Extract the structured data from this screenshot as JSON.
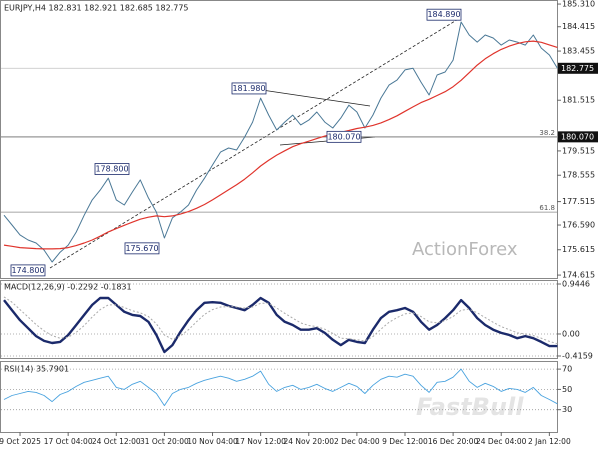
{
  "chart_data": [
    {
      "type": "line",
      "title": "EURJPY,H4 182.831 182.921 182.685 182.775",
      "ylim": [
        174.5,
        185.47
      ],
      "yticks": [
        {
          "value": 185.31,
          "label": "185.310"
        },
        184.415,
        183.455,
        181.515,
        179.515,
        178.555,
        177.515,
        {
          "value": 176.59,
          "label": "176.590"
        },
        175.615,
        174.615
      ],
      "grid": false,
      "price_tags": [
        {
          "value": 182.775,
          "label": "182.775"
        },
        {
          "value": 180.07,
          "label": "180.070"
        }
      ],
      "levels": [
        {
          "value": 180.07,
          "label": "38.2"
        },
        {
          "value": 177.1,
          "label": "61.8"
        }
      ],
      "annotations": [
        {
          "value": 184.89,
          "label": "184.890"
        },
        {
          "value": 181.98,
          "label": "181.980"
        },
        {
          "value": 178.8,
          "label": "178.800"
        },
        {
          "value": 180.07,
          "label": "180.070"
        },
        {
          "value": 175.67,
          "label": "175.670"
        },
        {
          "value": 174.8,
          "label": "174.800"
        }
      ],
      "watermark": "ActionForex",
      "series": [
        {
          "color": "#4a7896",
          "values": [
            176.98,
            176.59,
            176.2,
            176.0,
            175.88,
            175.6,
            175.13,
            175.52,
            175.8,
            176.31,
            176.98,
            177.58,
            177.97,
            178.44,
            177.58,
            177.38,
            177.89,
            178.37,
            177.66,
            177.1,
            176.08,
            176.87,
            177.1,
            177.38,
            177.97,
            178.44,
            178.96,
            179.47,
            179.63,
            179.55,
            180.06,
            180.65,
            181.6,
            180.93,
            180.34,
            180.65,
            180.93,
            180.54,
            180.73,
            181.05,
            180.65,
            180.42,
            180.81,
            181.32,
            181.05,
            180.42,
            180.93,
            181.6,
            182.11,
            182.31,
            182.71,
            182.78,
            182.23,
            181.72,
            182.51,
            182.63,
            183.1,
            184.6,
            184.09,
            183.81,
            184.09,
            183.97,
            183.69,
            183.89,
            183.81,
            183.69,
            184.09,
            183.57,
            183.3,
            182.775
          ]
        },
        {
          "color": "#e0342c",
          "values": [
            175.8,
            175.75,
            175.7,
            175.68,
            175.66,
            175.65,
            175.65,
            175.66,
            175.7,
            175.78,
            175.88,
            176.0,
            176.15,
            176.32,
            176.45,
            176.58,
            176.7,
            176.82,
            176.9,
            176.95,
            176.92,
            176.95,
            177.02,
            177.12,
            177.25,
            177.4,
            177.58,
            177.78,
            177.98,
            178.18,
            178.4,
            178.65,
            178.92,
            179.15,
            179.35,
            179.52,
            179.68,
            179.8,
            179.9,
            180.0,
            180.1,
            180.18,
            180.25,
            180.32,
            180.4,
            180.45,
            180.52,
            180.62,
            180.75,
            180.9,
            181.08,
            181.25,
            181.42,
            181.55,
            181.7,
            181.85,
            182.05,
            182.3,
            182.6,
            182.9,
            183.15,
            183.35,
            183.52,
            183.65,
            183.75,
            183.82,
            183.85,
            183.8,
            183.7,
            183.6
          ]
        }
      ]
    },
    {
      "type": "line",
      "title": "MACD(12,26,9) -0.2292 -0.1831",
      "ylim": [
        -0.454,
        1.02
      ],
      "yticks": [
        0.9446,
        {
          "value": 0,
          "label": "0.00"
        },
        -0.4159
      ],
      "grid": true,
      "series": [
        {
          "color": "#1b2a6b",
          "values": [
            0.64,
            0.45,
            0.26,
            0.11,
            -0.04,
            -0.13,
            -0.17,
            -0.15,
            -0.02,
            0.17,
            0.36,
            0.55,
            0.68,
            0.68,
            0.55,
            0.42,
            0.36,
            0.34,
            0.23,
            -0.02,
            -0.34,
            -0.21,
            0.04,
            0.26,
            0.45,
            0.59,
            0.6,
            0.59,
            0.53,
            0.49,
            0.45,
            0.55,
            0.68,
            0.59,
            0.36,
            0.23,
            0.17,
            0.08,
            0.08,
            0.11,
            0.02,
            -0.11,
            -0.21,
            -0.11,
            -0.15,
            -0.17,
            0.08,
            0.3,
            0.42,
            0.45,
            0.49,
            0.42,
            0.23,
            0.08,
            0.17,
            0.3,
            0.45,
            0.64,
            0.49,
            0.3,
            0.17,
            0.08,
            0.02,
            -0.02,
            -0.08,
            -0.04,
            -0.08,
            -0.15,
            -0.23,
            -0.2292
          ]
        },
        {
          "color": "#aaaaaa",
          "values": [
            0.7,
            0.6,
            0.46,
            0.32,
            0.18,
            0.06,
            -0.03,
            -0.08,
            -0.06,
            0.03,
            0.16,
            0.32,
            0.46,
            0.55,
            0.55,
            0.5,
            0.44,
            0.4,
            0.33,
            0.19,
            -0.02,
            -0.1,
            -0.04,
            0.08,
            0.23,
            0.37,
            0.46,
            0.51,
            0.52,
            0.51,
            0.49,
            0.51,
            0.58,
            0.58,
            0.49,
            0.39,
            0.3,
            0.21,
            0.16,
            0.14,
            0.09,
            0.01,
            -0.08,
            -0.09,
            -0.11,
            -0.13,
            -0.05,
            0.09,
            0.22,
            0.31,
            0.38,
            0.4,
            0.33,
            0.23,
            0.21,
            0.25,
            0.33,
            0.45,
            0.47,
            0.4,
            0.31,
            0.22,
            0.14,
            0.08,
            0.02,
            0.0,
            -0.03,
            -0.08,
            -0.14,
            -0.1831
          ]
        }
      ]
    },
    {
      "type": "line",
      "title": "RSI(14) 35.7901",
      "ylim": [
        8,
        78
      ],
      "yticks": [
        70,
        50,
        30
      ],
      "grid": true,
      "watermark": "FastBull",
      "categories": [
        null,
        null,
        "9 Oct 2025",
        null,
        null,
        null,
        null,
        null,
        "17 Oct 04:00",
        null,
        null,
        null,
        null,
        null,
        "24 Oct 12:00",
        null,
        null,
        null,
        null,
        null,
        "31 Oct 20:00",
        null,
        null,
        null,
        null,
        null,
        "10 Nov 04:00",
        null,
        null,
        null,
        null,
        null,
        "17 Nov 12:00",
        null,
        null,
        null,
        null,
        null,
        "24 Nov 20:00",
        null,
        null,
        null,
        null,
        null,
        "2 Dec 04:00",
        null,
        null,
        null,
        null,
        null,
        "9 Dec 12:00",
        null,
        null,
        null,
        null,
        null,
        "16 Dec 20:00",
        null,
        null,
        null,
        null,
        null,
        "24 Dec 04:00",
        null,
        null,
        null,
        null,
        null,
        "2 Jan 12:00",
        null
      ],
      "series": [
        {
          "color": "#4aa3df",
          "values": [
            40,
            44,
            46,
            48,
            47,
            44,
            38,
            45,
            48,
            53,
            57,
            59,
            61,
            63,
            52,
            50,
            55,
            58,
            52,
            46,
            34,
            46,
            50,
            52,
            56,
            59,
            61,
            63,
            61,
            58,
            60,
            63,
            68,
            55,
            48,
            52,
            54,
            50,
            52,
            55,
            51,
            48,
            52,
            56,
            53,
            46,
            54,
            60,
            63,
            62,
            65,
            63,
            54,
            47,
            57,
            58,
            62,
            70,
            58,
            52,
            56,
            53,
            48,
            51,
            50,
            47,
            52,
            44,
            40,
            35.7901
          ]
        }
      ]
    }
  ]
}
